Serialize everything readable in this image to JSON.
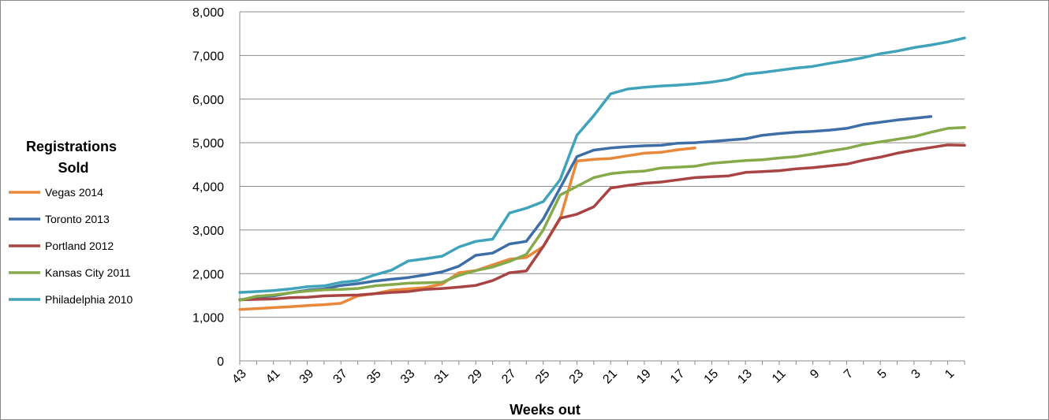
{
  "chart_data": {
    "type": "line",
    "title": "",
    "xlabel": "Weeks out",
    "ylabel": "",
    "ylim": [
      0,
      8000
    ],
    "y_ticks": [
      "0",
      "1,000",
      "2,000",
      "3,000",
      "4,000",
      "5,000",
      "6,000",
      "7,000",
      "8,000"
    ],
    "y_tick_values": [
      0,
      1000,
      2000,
      3000,
      4000,
      5000,
      6000,
      7000,
      8000
    ],
    "x_tick_labels": [
      "43",
      "41",
      "39",
      "37",
      "35",
      "33",
      "31",
      "29",
      "27",
      "25",
      "23",
      "21",
      "19",
      "17",
      "15",
      "13",
      "11",
      "9",
      "7",
      "5",
      "3",
      "1"
    ],
    "x": [
      43,
      42,
      41,
      40,
      39,
      38,
      37,
      36,
      35,
      34,
      33,
      32,
      31,
      30,
      29,
      28,
      27,
      26,
      25,
      24,
      23,
      22,
      21,
      20,
      19,
      18,
      17,
      16,
      15,
      14,
      13,
      12,
      11,
      10,
      9,
      8,
      7,
      6,
      5,
      4,
      3,
      2,
      1,
      0
    ],
    "grid": true,
    "legend_title": "Registrations Sold",
    "legend_position": "left",
    "series": [
      {
        "name": "Vegas 2014",
        "color": "#E8883A",
        "values": [
          1180,
          1200,
          1220,
          1240,
          1270,
          1290,
          1320,
          1490,
          1540,
          1620,
          1650,
          1680,
          1760,
          2020,
          2070,
          2200,
          2330,
          2370,
          2620,
          3250,
          4580,
          4620,
          4640,
          4700,
          4760,
          4780,
          4840,
          4880,
          null,
          null,
          null,
          null,
          null,
          null,
          null,
          null,
          null,
          null,
          null,
          null,
          null,
          null,
          null,
          null
        ]
      },
      {
        "name": "Toronto 2013",
        "color": "#3E6EA8",
        "values": [
          1400,
          1460,
          1490,
          1560,
          1620,
          1650,
          1730,
          1770,
          1830,
          1870,
          1910,
          1970,
          2040,
          2170,
          2420,
          2470,
          2680,
          2740,
          3250,
          3960,
          4680,
          4830,
          4880,
          4910,
          4930,
          4940,
          4990,
          5000,
          5030,
          5060,
          5090,
          5170,
          5210,
          5240,
          5260,
          5290,
          5330,
          5420,
          5470,
          5520,
          5560,
          5600,
          null,
          null
        ]
      },
      {
        "name": "Portland 2012",
        "color": "#A84443",
        "values": [
          1400,
          1410,
          1420,
          1450,
          1460,
          1490,
          1500,
          1510,
          1540,
          1570,
          1590,
          1640,
          1660,
          1690,
          1730,
          1840,
          2020,
          2060,
          2620,
          3270,
          3360,
          3530,
          3960,
          4020,
          4070,
          4100,
          4150,
          4200,
          4220,
          4240,
          4320,
          4340,
          4360,
          4400,
          4430,
          4470,
          4510,
          4600,
          4670,
          4760,
          4830,
          4890,
          4950,
          4940
        ]
      },
      {
        "name": "Kansas City 2011",
        "color": "#86A94A",
        "values": [
          1390,
          1480,
          1510,
          1560,
          1600,
          1630,
          1640,
          1660,
          1720,
          1750,
          1780,
          1790,
          1800,
          1960,
          2070,
          2150,
          2280,
          2440,
          3000,
          3800,
          4000,
          4200,
          4290,
          4330,
          4350,
          4420,
          4440,
          4460,
          4530,
          4560,
          4590,
          4610,
          4650,
          4680,
          4740,
          4810,
          4870,
          4960,
          5020,
          5080,
          5140,
          5240,
          5330,
          5350
        ]
      },
      {
        "name": "Philadelphia 2010",
        "color": "#3FA3BA",
        "values": [
          1570,
          1590,
          1610,
          1650,
          1700,
          1720,
          1800,
          1840,
          1970,
          2080,
          2290,
          2340,
          2400,
          2610,
          2740,
          2790,
          3390,
          3500,
          3650,
          4150,
          5170,
          5620,
          6120,
          6230,
          6270,
          6300,
          6320,
          6350,
          6390,
          6450,
          6570,
          6610,
          6660,
          6710,
          6750,
          6820,
          6880,
          6950,
          7040,
          7100,
          7180,
          7240,
          7310,
          7400
        ]
      }
    ]
  }
}
